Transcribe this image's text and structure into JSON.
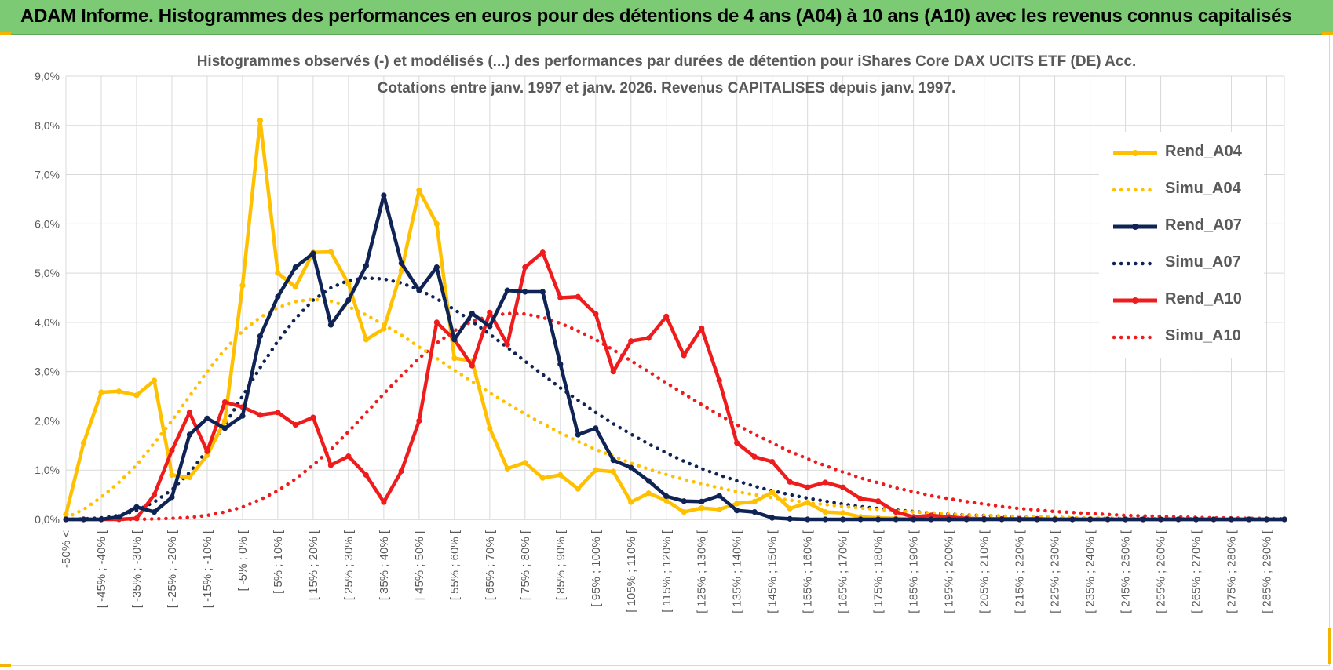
{
  "header": {
    "title": "ADAM Informe. Histogrammes des performances en euros pour des détentions de 4 ans (A04) à 10 ans (A10) avec les revenus connus capitalisés"
  },
  "colors": {
    "banner": "#7ccb74",
    "corner_marks": "#f2b400",
    "grid": "#d9d9d9",
    "text": "#595959"
  },
  "chart_data": {
    "type": "line",
    "title_line1": "Histogrammes observés (-) et modélisés (...) des performances par durées de détention pour iShares Core DAX UCITS ETF (DE) Acc.",
    "title_line2": "Cotations entre janv. 1997 et janv. 2026. Revenus CAPITALISES depuis janv. 1997.",
    "xlabel": "",
    "ylabel": "",
    "ylim": [
      0,
      9
    ],
    "y_unit": "%",
    "y_ticks": [
      "0,0%",
      "1,0%",
      "2,0%",
      "3,0%",
      "4,0%",
      "5,0%",
      "6,0%",
      "7,0%",
      "8,0%",
      "9,0%"
    ],
    "grid": true,
    "legend_position": "right",
    "x_tick_labels": [
      "-50% <",
      "[ -45% ; -40% [",
      "[ -35% ; -30% [",
      "[ -25% ; -20% [",
      "[ -15% ; -10% [",
      "[ -5% ; 0% [",
      "[ 5% ; 10% [",
      "[ 15% ; 20% [",
      "[ 25% ; 30% [",
      "[ 35% ; 40% [",
      "[ 45% ; 50% [",
      "[ 55% ; 60% [",
      "[ 65% ; 70% [",
      "[ 75% ; 80% [",
      "[ 85% ; 90% [",
      "[ 95% ; 100% [",
      "[ 105% ; 110% [",
      "[ 115% ; 120% [",
      "[ 125% ; 130% [",
      "[ 135% ; 140% [",
      "[ 145% ; 150% [",
      "[ 155% ; 160% [",
      "[ 165% ; 170% [",
      "[ 175% ; 180% [",
      "[ 185% ; 190% [",
      "[ 195% ; 200% [",
      "[ 205% ; 210% [",
      "[ 215% ; 220% [",
      "[ 225% ; 230% [",
      "[ 235% ; 240% [",
      "[ 245% ; 250% [",
      "[ 255% ; 260% [",
      "[ 265% ; 270% [",
      "[ 275% ; 280% [",
      "[ 285% ; 290% ["
    ],
    "series": [
      {
        "name": "Rend_A04",
        "color": "#ffc000",
        "style": "solid",
        "values": [
          0.1,
          1.55,
          2.58,
          2.6,
          2.52,
          2.82,
          0.9,
          0.85,
          1.3,
          2.0,
          4.75,
          8.1,
          5.0,
          4.72,
          5.42,
          5.43,
          4.78,
          3.65,
          3.87,
          5.05,
          6.68,
          6.0,
          3.27,
          3.22,
          1.85,
          1.03,
          1.15,
          0.84,
          0.9,
          0.62,
          1.0,
          0.97,
          0.35,
          0.53,
          0.38,
          0.15,
          0.23,
          0.2,
          0.32,
          0.36,
          0.55,
          0.22,
          0.34,
          0.15,
          0.13,
          0.05,
          0.03,
          0.02,
          0,
          0,
          0,
          0,
          0,
          0,
          0,
          0,
          0,
          0,
          0,
          0,
          0,
          0,
          0,
          0,
          0,
          0,
          0,
          0,
          0,
          0
        ]
      },
      {
        "name": "Simu_A04",
        "color": "#ffc000",
        "style": "dotted",
        "values": [
          0.03,
          0.2,
          0.45,
          0.75,
          1.1,
          1.55,
          2.0,
          2.5,
          3.0,
          3.45,
          3.82,
          4.1,
          4.3,
          4.42,
          4.47,
          4.43,
          4.32,
          4.15,
          3.95,
          3.74,
          3.5,
          3.27,
          3.03,
          2.8,
          2.57,
          2.35,
          2.14,
          1.94,
          1.76,
          1.58,
          1.42,
          1.28,
          1.14,
          1.02,
          0.91,
          0.81,
          0.72,
          0.64,
          0.56,
          0.5,
          0.44,
          0.39,
          0.34,
          0.3,
          0.26,
          0.23,
          0.2,
          0.17,
          0.15,
          0.13,
          0.11,
          0.09,
          0.08,
          0.07,
          0.06,
          0.05,
          0.04,
          0.03,
          0.03,
          0.02,
          0.02,
          0.01,
          0.01,
          0.01,
          0.01,
          0,
          0,
          0,
          0,
          0
        ]
      },
      {
        "name": "Rend_A07",
        "color": "#0f2355",
        "style": "solid",
        "values": [
          0,
          0,
          0,
          0.05,
          0.25,
          0.15,
          0.45,
          1.72,
          2.05,
          1.85,
          2.1,
          3.72,
          4.52,
          5.12,
          5.4,
          3.95,
          4.45,
          5.15,
          6.58,
          5.2,
          4.65,
          5.12,
          3.65,
          4.18,
          3.92,
          4.65,
          4.62,
          4.62,
          3.15,
          1.72,
          1.85,
          1.2,
          1.05,
          0.78,
          0.47,
          0.37,
          0.36,
          0.48,
          0.18,
          0.15,
          0.03,
          0.01,
          0,
          0,
          0,
          0,
          0,
          0,
          0,
          0,
          0,
          0,
          0,
          0,
          0,
          0,
          0,
          0,
          0,
          0,
          0,
          0,
          0,
          0,
          0,
          0,
          0,
          0,
          0,
          0
        ]
      },
      {
        "name": "Simu_A07",
        "color": "#0f2355",
        "style": "dotted",
        "values": [
          0,
          0.01,
          0.03,
          0.08,
          0.18,
          0.35,
          0.6,
          0.95,
          1.4,
          1.92,
          2.5,
          3.08,
          3.62,
          4.08,
          4.45,
          4.7,
          4.85,
          4.9,
          4.88,
          4.8,
          4.66,
          4.48,
          4.26,
          4.02,
          3.76,
          3.49,
          3.21,
          2.94,
          2.67,
          2.42,
          2.17,
          1.94,
          1.73,
          1.53,
          1.35,
          1.18,
          1.03,
          0.9,
          0.78,
          0.67,
          0.58,
          0.5,
          0.43,
          0.37,
          0.31,
          0.26,
          0.22,
          0.19,
          0.16,
          0.13,
          0.11,
          0.09,
          0.08,
          0.06,
          0.05,
          0.04,
          0.04,
          0.03,
          0.02,
          0.02,
          0.02,
          0.01,
          0.01,
          0.01,
          0.01,
          0,
          0,
          0,
          0,
          0
        ]
      },
      {
        "name": "Rend_A10",
        "color": "#ee1c1c",
        "style": "solid",
        "values": [
          0,
          0,
          0,
          0,
          0.02,
          0.5,
          1.4,
          2.17,
          1.38,
          2.38,
          2.28,
          2.12,
          2.17,
          1.92,
          2.07,
          1.1,
          1.28,
          0.9,
          0.35,
          0.98,
          2.0,
          4.0,
          3.65,
          3.12,
          4.2,
          3.55,
          5.12,
          5.42,
          4.5,
          4.52,
          4.17,
          3.0,
          3.62,
          3.68,
          4.12,
          3.33,
          3.88,
          2.82,
          1.55,
          1.27,
          1.17,
          0.76,
          0.65,
          0.75,
          0.65,
          0.42,
          0.37,
          0.15,
          0.05,
          0.08,
          0.05,
          0.02,
          0.01,
          0.01,
          0.01,
          0.01,
          0,
          0,
          0,
          0,
          0,
          0,
          0,
          0,
          0,
          0,
          0,
          0,
          0,
          0
        ]
      },
      {
        "name": "Simu_A10",
        "color": "#ee1c1c",
        "style": "dotted",
        "values": [
          0,
          0,
          0,
          0,
          0,
          0.01,
          0.02,
          0.04,
          0.08,
          0.15,
          0.25,
          0.4,
          0.58,
          0.82,
          1.1,
          1.42,
          1.78,
          2.16,
          2.55,
          2.92,
          3.27,
          3.58,
          3.83,
          4.02,
          4.13,
          4.18,
          4.17,
          4.1,
          3.98,
          3.83,
          3.65,
          3.44,
          3.22,
          3.0,
          2.77,
          2.55,
          2.33,
          2.12,
          1.92,
          1.73,
          1.55,
          1.38,
          1.23,
          1.09,
          0.96,
          0.84,
          0.74,
          0.64,
          0.56,
          0.48,
          0.42,
          0.36,
          0.31,
          0.26,
          0.22,
          0.19,
          0.16,
          0.14,
          0.12,
          0.1,
          0.08,
          0.07,
          0.06,
          0.05,
          0.04,
          0.03,
          0.03,
          0.02,
          0.02,
          0.01
        ]
      }
    ]
  }
}
